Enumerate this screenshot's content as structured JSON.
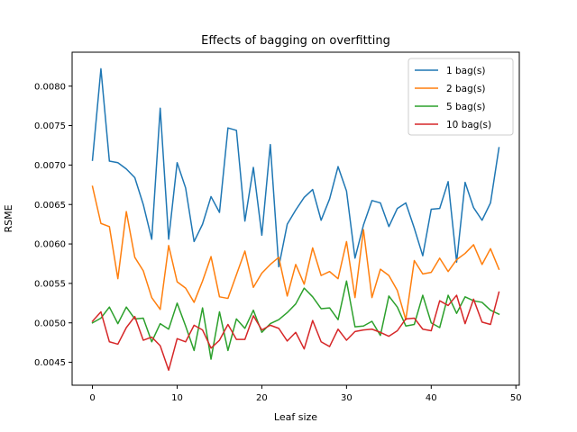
{
  "chart_data": {
    "type": "line",
    "title": "Effects of bagging on overfitting",
    "xlabel": "Leaf size",
    "ylabel": "RSME",
    "xlim": [
      -2.4,
      50.4
    ],
    "ylim": [
      0.00421,
      0.00843
    ],
    "xticks": [
      0,
      10,
      20,
      30,
      40,
      50
    ],
    "xtick_labels": [
      "0",
      "10",
      "20",
      "30",
      "40",
      "50"
    ],
    "yticks": [
      0.0045,
      0.005,
      0.0055,
      0.006,
      0.0065,
      0.007,
      0.0075,
      0.008
    ],
    "ytick_labels": [
      "0.0045",
      "0.0050",
      "0.0055",
      "0.0060",
      "0.0065",
      "0.0070",
      "0.0075",
      "0.0080"
    ],
    "grid": false,
    "legend_position": "top-right",
    "x": [
      0,
      1,
      2,
      3,
      4,
      5,
      6,
      7,
      8,
      9,
      10,
      11,
      12,
      13,
      14,
      15,
      16,
      17,
      18,
      19,
      20,
      21,
      22,
      23,
      24,
      25,
      26,
      27,
      28,
      29,
      30,
      31,
      32,
      33,
      34,
      35,
      36,
      37,
      38,
      39,
      40,
      41,
      42,
      43,
      44,
      45,
      46,
      47,
      48
    ],
    "series": [
      {
        "name": "1 bag(s)",
        "color": "#1f77b4",
        "values": [
          0.00706,
          0.00822,
          0.00705,
          0.00703,
          0.00695,
          0.00684,
          0.0065,
          0.00606,
          0.00772,
          0.00606,
          0.00703,
          0.00671,
          0.00603,
          0.00625,
          0.0066,
          0.0064,
          0.00747,
          0.00744,
          0.00629,
          0.00697,
          0.00611,
          0.00726,
          0.00571,
          0.00625,
          0.00643,
          0.00659,
          0.00669,
          0.0063,
          0.00657,
          0.00698,
          0.00667,
          0.00582,
          0.00624,
          0.00655,
          0.00652,
          0.00622,
          0.00645,
          0.00652,
          0.0062,
          0.00585,
          0.00644,
          0.00645,
          0.00679,
          0.00577,
          0.00678,
          0.00646,
          0.0063,
          0.00652,
          0.00722
        ]
      },
      {
        "name": "2 bag(s)",
        "color": "#ff7f0e",
        "values": [
          0.00673,
          0.00626,
          0.00622,
          0.00556,
          0.00641,
          0.00583,
          0.00566,
          0.00532,
          0.00517,
          0.00598,
          0.00552,
          0.00544,
          0.00526,
          0.00553,
          0.00584,
          0.00533,
          0.00531,
          0.00561,
          0.00591,
          0.00545,
          0.00563,
          0.00574,
          0.00583,
          0.00534,
          0.00574,
          0.00549,
          0.00595,
          0.0056,
          0.00565,
          0.00556,
          0.00603,
          0.00532,
          0.00618,
          0.00532,
          0.00568,
          0.0056,
          0.00541,
          0.00504,
          0.00579,
          0.00562,
          0.00564,
          0.00582,
          0.00565,
          0.0058,
          0.00588,
          0.00599,
          0.00574,
          0.00594,
          0.00568
        ]
      },
      {
        "name": "5 bag(s)",
        "color": "#2ca02c",
        "values": [
          0.005,
          0.00506,
          0.0052,
          0.00499,
          0.0052,
          0.00505,
          0.00506,
          0.00476,
          0.00499,
          0.00492,
          0.00525,
          0.00496,
          0.00465,
          0.00519,
          0.00454,
          0.00514,
          0.00465,
          0.00505,
          0.00493,
          0.00516,
          0.00488,
          0.00499,
          0.00504,
          0.00513,
          0.00524,
          0.00544,
          0.00533,
          0.00518,
          0.00519,
          0.00504,
          0.00553,
          0.00495,
          0.00496,
          0.00502,
          0.00484,
          0.00534,
          0.0052,
          0.00496,
          0.00498,
          0.00535,
          0.005,
          0.00494,
          0.00535,
          0.00512,
          0.00533,
          0.00528,
          0.00526,
          0.00516,
          0.00511
        ]
      },
      {
        "name": "10 bag(s)",
        "color": "#d62728",
        "values": [
          0.00502,
          0.00514,
          0.00476,
          0.00473,
          0.00494,
          0.00508,
          0.00478,
          0.00482,
          0.00471,
          0.0044,
          0.0048,
          0.00476,
          0.00497,
          0.00491,
          0.00468,
          0.00478,
          0.00498,
          0.00479,
          0.00479,
          0.00509,
          0.00491,
          0.00497,
          0.00493,
          0.00477,
          0.00488,
          0.00467,
          0.00503,
          0.00476,
          0.0047,
          0.00492,
          0.00478,
          0.00489,
          0.00491,
          0.00492,
          0.00488,
          0.00483,
          0.0049,
          0.00505,
          0.00506,
          0.00492,
          0.0049,
          0.00528,
          0.00522,
          0.00535,
          0.00499,
          0.0053,
          0.00501,
          0.00498,
          0.00539
        ]
      }
    ]
  }
}
